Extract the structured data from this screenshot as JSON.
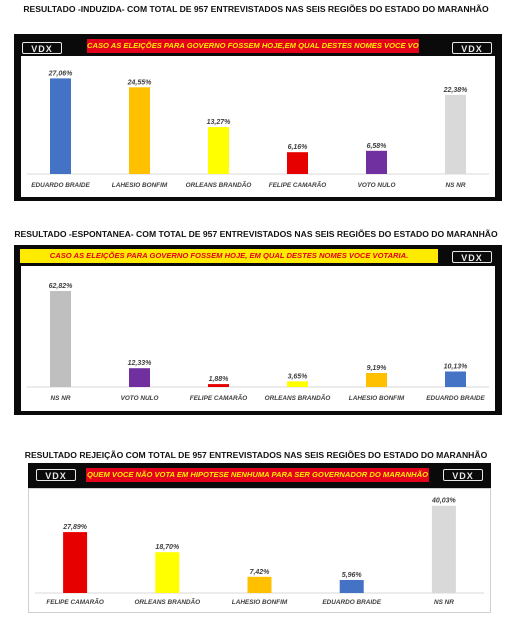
{
  "colors": {
    "panel_bg": "#0a0a0a",
    "banner_red_bg": "#e3001b",
    "banner_red_text": "#ffeb00",
    "banner_yellow_bg": "#ffeb00",
    "banner_yellow_text": "#e3001b"
  },
  "logo_text": "VDX",
  "sections": [
    {
      "title": "RESULTADO -INDUZIDA- COM TOTAL DE 957 ENTREVISTADOS NAS SEIS REGIÕES DO ESTADO DO MARANHÃO",
      "question": "CASO AS ELEIÇÕES PARA GOVERNO FOSSEM HOJE,EM QUAL DESTES NOMES VOCE VOTARIA"
    },
    {
      "title": "RESULTADO -ESPONTANEA- COM TOTAL DE 957 ENTREVISTADOS NAS SEIS REGIÕES DO ESTADO DO MARANHÃO",
      "question": "CASO AS ELEIÇÕES PARA GOVERNO FOSSEM HOJE, EM QUAL DESTES NOMES VOCE VOTARIA."
    },
    {
      "title": "RESULTADO REJEIÇÃO COM TOTAL DE 957 ENTREVISTADOS NAS SEIS REGIÕES DO ESTADO DO MARANHÃO",
      "question": "QUEM VOCE NÃO VOTA EM HIPOTESE NENHUMA PARA SER GOVERNADOR DO MARANHÃO"
    }
  ],
  "chart_data": [
    {
      "type": "bar",
      "title": "CASO AS ELEIÇÕES PARA GOVERNO FOSSEM HOJE,EM QUAL DESTES NOMES VOCE VOTARIA",
      "categories": [
        "EDUARDO BRAIDE",
        "LAHESIO BONFIM",
        "ORLEANS BRANDÃO",
        "FELIPE CAMARÃO",
        "VOTO NULO",
        "NS NR"
      ],
      "values": [
        27.06,
        24.55,
        13.27,
        6.16,
        6.58,
        22.38
      ],
      "labels": [
        "27,06%",
        "24,55%",
        "13,27%",
        "6,16%",
        "6,58%",
        "22,38%"
      ],
      "colors": [
        "#4472c4",
        "#ffc000",
        "#ffff00",
        "#e60000",
        "#7030a0",
        "#d9d9d9"
      ],
      "ylim": [
        0,
        30
      ]
    },
    {
      "type": "bar",
      "title": "CASO AS ELEIÇÕES PARA GOVERNO FOSSEM HOJE, EM QUAL DESTES NOMES VOCE VOTARIA.",
      "categories": [
        "NS NR",
        "VOTO NULO",
        "FELIPE CAMARÃO",
        "ORLEANS BRANDÃO",
        "LAHESIO BONFIM",
        "EDUARDO BRAIDE"
      ],
      "values": [
        62.82,
        12.33,
        1.88,
        3.65,
        9.19,
        10.13
      ],
      "labels": [
        "62,82%",
        "12,33%",
        "1,88%",
        "3,65%",
        "9,19%",
        "10,13%"
      ],
      "colors": [
        "#bfbfbf",
        "#7030a0",
        "#e60000",
        "#ffff00",
        "#ffc000",
        "#4472c4"
      ],
      "ylim": [
        0,
        70
      ]
    },
    {
      "type": "bar",
      "title": "QUEM VOCE NÃO VOTA EM HIPOTESE NENHUMA PARA SER GOVERNADOR DO MARANHÃO",
      "categories": [
        "FELIPE CAMARÃO",
        "ORLEANS BRANDÃO",
        "LAHESIO BONFIM",
        "EDUARDO BRAIDE",
        "NS NR"
      ],
      "values": [
        27.89,
        18.7,
        7.42,
        5.96,
        40.03
      ],
      "labels": [
        "27,89%",
        "18,70%",
        "7,42%",
        "5,96%",
        "40,03%"
      ],
      "colors": [
        "#e60000",
        "#ffff00",
        "#ffc000",
        "#4472c4",
        "#d9d9d9"
      ],
      "ylim": [
        0,
        44
      ]
    }
  ]
}
